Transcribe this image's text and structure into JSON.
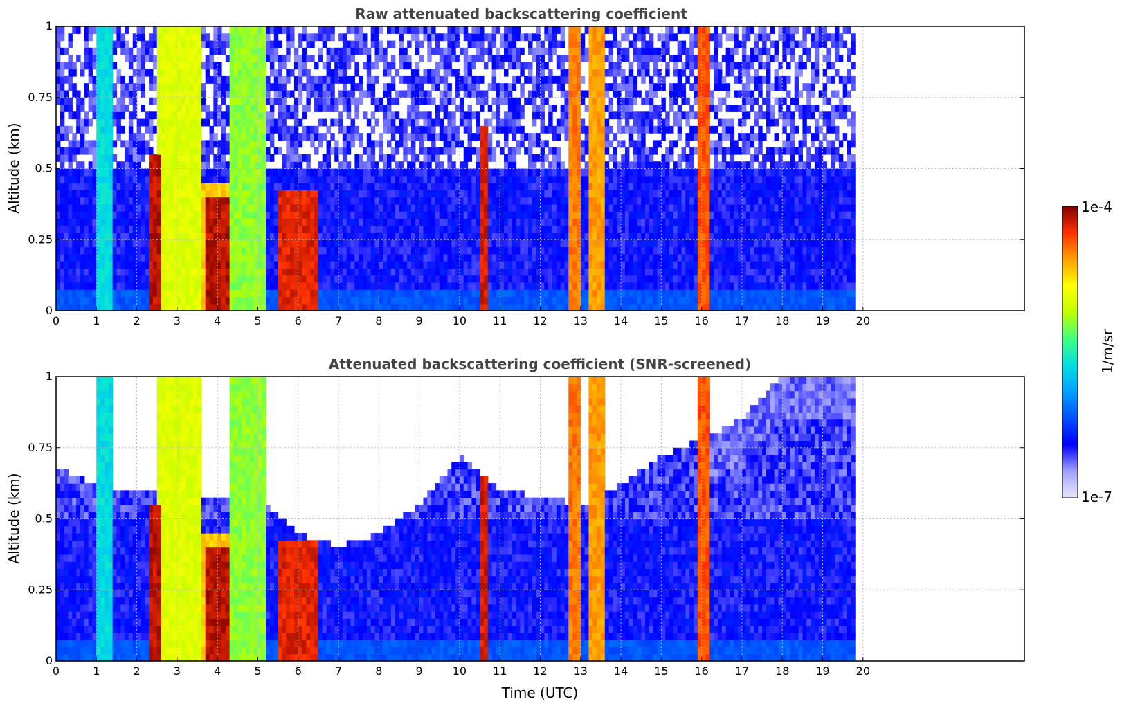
{
  "chart_data": [
    {
      "type": "heatmap",
      "title": "Raw attenuated backscattering coefficient",
      "xlabel": "",
      "ylabel": "Altitude (km)",
      "xlim": [
        0,
        24
      ],
      "ylim": [
        0,
        1
      ],
      "x_ticks": [
        "0",
        "1",
        "2",
        "3",
        "4",
        "5",
        "6",
        "7",
        "8",
        "9",
        "10",
        "11",
        "12",
        "13",
        "14",
        "15",
        "16",
        "17",
        "18",
        "19",
        "20"
      ],
      "y_ticks": [
        "0",
        "0.25",
        "0.5",
        "0.75",
        "1"
      ],
      "grid": true,
      "data_end_time": 19.8,
      "bands": [
        {
          "t0": 1.05,
          "t1": 1.45,
          "alt_top": 1.0,
          "level": 0.45
        },
        {
          "t0": 2.55,
          "t1": 3.55,
          "alt_top": 1.0,
          "level": 0.68
        },
        {
          "t0": 3.6,
          "t1": 4.3,
          "alt_top": 0.45,
          "level": 0.78
        },
        {
          "t0": 4.3,
          "t1": 5.15,
          "alt_top": 1.0,
          "level": 0.6
        },
        {
          "t0": 3.7,
          "t1": 4.3,
          "alt_top": 0.4,
          "level": 0.96
        },
        {
          "t0": 2.35,
          "t1": 2.6,
          "alt_top": 0.55,
          "level": 0.96
        },
        {
          "t0": 5.5,
          "t1": 6.5,
          "alt_top": 0.43,
          "level": 0.93
        },
        {
          "t0": 10.5,
          "t1": 10.7,
          "alt_top": 0.65,
          "level": 0.94
        },
        {
          "t0": 12.7,
          "t1": 13.0,
          "alt_top": 1.0,
          "level": 0.85
        },
        {
          "t0": 13.2,
          "t1": 13.6,
          "alt_top": 1.0,
          "level": 0.82
        },
        {
          "t0": 15.9,
          "t1": 16.2,
          "alt_top": 1.0,
          "level": 0.88
        }
      ],
      "background": {
        "near_surface_level": 0.28,
        "upper_level": 0.18,
        "noise_top": 0.5
      }
    },
    {
      "type": "heatmap",
      "title": "Attenuated backscattering coefficient (SNR-screened)",
      "xlabel": "Time (UTC)",
      "ylabel": "Altitude (km)",
      "xlim": [
        0,
        24
      ],
      "ylim": [
        0,
        1
      ],
      "x_ticks": [
        "0",
        "1",
        "2",
        "3",
        "4",
        "5",
        "6",
        "7",
        "8",
        "9",
        "10",
        "11",
        "12",
        "13",
        "14",
        "15",
        "16",
        "17",
        "18",
        "19",
        "20"
      ],
      "y_ticks": [
        "0",
        "0.25",
        "0.5",
        "0.75",
        "1"
      ],
      "grid": true,
      "data_end_time": 19.8,
      "screen_top": [
        [
          0,
          0.68
        ],
        [
          1,
          0.62
        ],
        [
          2,
          0.6
        ],
        [
          5.2,
          0.55
        ],
        [
          6,
          0.45
        ],
        [
          7,
          0.4
        ],
        [
          8,
          0.45
        ],
        [
          9,
          0.55
        ],
        [
          10,
          0.72
        ],
        [
          11,
          0.6
        ],
        [
          12,
          0.58
        ],
        [
          13,
          0.55
        ],
        [
          14,
          0.62
        ],
        [
          15,
          0.72
        ],
        [
          16,
          0.78
        ],
        [
          17,
          0.85
        ],
        [
          18,
          1.0
        ],
        [
          19.8,
          1.0
        ]
      ]
    }
  ],
  "colorbar": {
    "max_label": "1e-4",
    "min_label": "1e-7",
    "unit_label": "1/m/sr",
    "colors": [
      "#e8e8ff",
      "#a0a0ff",
      "#0000ff",
      "#0050ff",
      "#00a0ff",
      "#00e0e0",
      "#40ff80",
      "#c0ff00",
      "#ffff00",
      "#ffa000",
      "#ff3000",
      "#800000"
    ]
  }
}
